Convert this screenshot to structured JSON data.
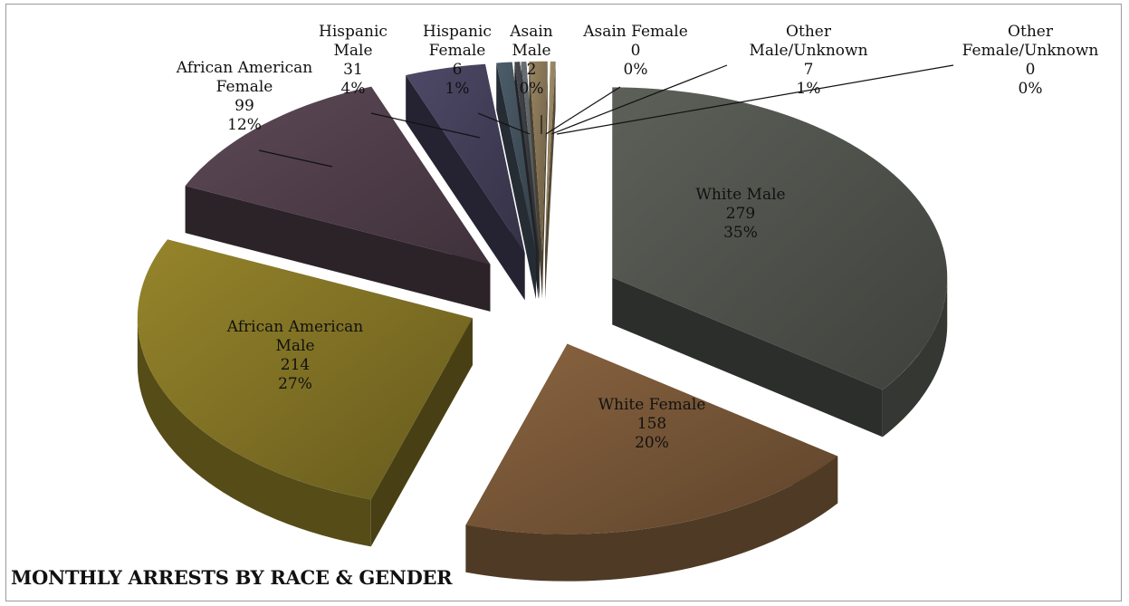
{
  "chart_data": {
    "type": "pie",
    "title": "MONTHLY ARRESTS BY RACE & GENDER",
    "slices": [
      {
        "label": "White Male",
        "value": 279,
        "percent": "35%",
        "color": "#4a4d47"
      },
      {
        "label": "White Female",
        "value": 158,
        "percent": "20%",
        "color": "#6e5033"
      },
      {
        "label": "African American Male",
        "value": 214,
        "percent": "27%",
        "color": "#786a22"
      },
      {
        "label": "African American Female",
        "value": 99,
        "percent": "12%",
        "color": "#4a3a45"
      },
      {
        "label": "Hispanic Male",
        "value": 31,
        "percent": "4%",
        "color": "#3e3a52"
      },
      {
        "label": "Hispanic Female",
        "value": 6,
        "percent": "1%",
        "color": "#3d4a55"
      },
      {
        "label": "Asain Male",
        "value": 2,
        "percent": "0%",
        "color": "#36393d"
      },
      {
        "label": "Asain Female",
        "value": 0,
        "percent": "0%",
        "color": "#555a5e"
      },
      {
        "label": "Other Male/Unknown",
        "value": 7,
        "percent": "1%",
        "color": "#7a6a4e"
      },
      {
        "label": "Other Female/Unknown",
        "value": 0,
        "percent": "0%",
        "color": "#8a7a5a"
      }
    ],
    "data_labels": [
      {
        "lines": [
          "White Male",
          "279",
          "35%"
        ]
      },
      {
        "lines": [
          "White Female",
          "158",
          "20%"
        ]
      },
      {
        "lines": [
          "African American",
          "Male",
          "214",
          "27%"
        ]
      },
      {
        "lines": [
          "African American",
          "Female",
          "99",
          "12%"
        ]
      },
      {
        "lines": [
          "Hispanic",
          "Male",
          "31",
          "4%"
        ]
      },
      {
        "lines": [
          "Hispanic",
          "Female",
          "6",
          "1%"
        ]
      },
      {
        "lines": [
          "Asain",
          "Male",
          "2",
          "0%"
        ]
      },
      {
        "lines": [
          "Asain Female",
          "0",
          "0%"
        ]
      },
      {
        "lines": [
          "Other",
          "Male/Unknown",
          "7",
          "1%"
        ]
      },
      {
        "lines": [
          "Other",
          "Female/Unknown",
          "0",
          "0%"
        ]
      }
    ]
  }
}
